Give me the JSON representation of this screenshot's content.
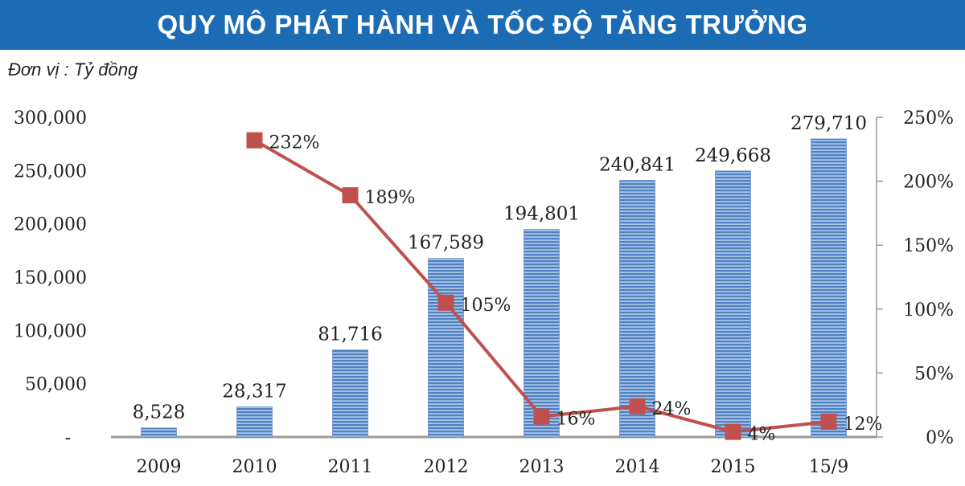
{
  "title": "QUY MÔ PHÁT HÀNH VÀ TỐC ĐỘ TĂNG TRƯỞNG",
  "unit_label": "Đơn vị : Tỷ đồng",
  "colors": {
    "title_bg": "#1c6bb5",
    "bar_fill": "#4f81c2",
    "bar_stripe": "#a9c4e6",
    "line": "#c0504d",
    "marker": "#c0504d"
  },
  "chart_data": {
    "type": "bar",
    "categories": [
      "2009",
      "2010",
      "2011",
      "2012",
      "2013",
      "2014",
      "2015",
      "15/9"
    ],
    "series": [
      {
        "type": "bar",
        "axis": "left",
        "values": [
          8528,
          28317,
          81716,
          167589,
          194801,
          240841,
          249668,
          279710
        ],
        "labels": [
          "8,528",
          "28,317",
          "81,716",
          "167,589",
          "194,801",
          "240,841",
          "249,668",
          "279,710"
        ]
      },
      {
        "type": "line",
        "axis": "right",
        "values": [
          null,
          232,
          189,
          105,
          16,
          24,
          4,
          12
        ],
        "labels": [
          null,
          "232%",
          "189%",
          "105%",
          "16%",
          "24%",
          "4%",
          "12%"
        ]
      }
    ],
    "y_left": {
      "min": 0,
      "max": 300000,
      "ticks": [
        0,
        50000,
        100000,
        150000,
        200000,
        250000,
        300000
      ],
      "tick_labels": [
        "-",
        "50,000",
        "100,000",
        "150,000",
        "200,000",
        "250,000",
        "300,000"
      ]
    },
    "y_right": {
      "min": 0,
      "max": 250,
      "ticks": [
        0,
        50,
        100,
        150,
        200,
        250
      ],
      "tick_labels": [
        "0%",
        "50%",
        "100%",
        "150%",
        "200%",
        "250%"
      ]
    },
    "grid": false,
    "legend": "none"
  }
}
